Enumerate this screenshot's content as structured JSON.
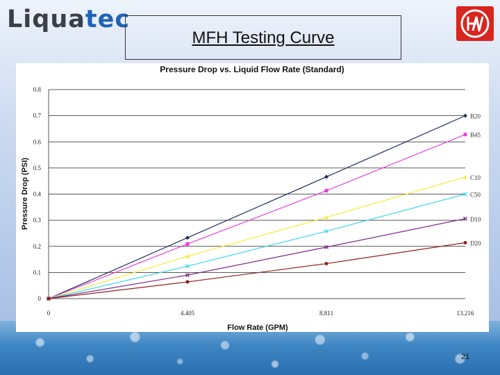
{
  "header": {
    "logo_part1": "Liqua",
    "logo_part2": "tec",
    "slide_title": "MFH Testing Curve",
    "page_number": "21"
  },
  "brand_colors": {
    "logo_dark": "#3b3f47",
    "logo_blue": "#1e63b8",
    "corner_logo_red": "#d8261f"
  },
  "icons": {
    "corner_logo": "hw-logo-icon"
  },
  "chart_data": {
    "type": "line",
    "title": "Pressure Drop vs. Liquid Flow Rate (Standard)",
    "xlabel": "Flow Rate (GPM)",
    "ylabel": "Pressure Drop (PSI)",
    "x": [
      0,
      4.405,
      8.811,
      13.216
    ],
    "x_tick_labels": [
      "0",
      "4.405",
      "8.811",
      "13.216"
    ],
    "y_ticks": [
      0,
      0.1,
      0.2,
      0.3,
      0.4,
      0.5,
      0.6,
      0.7,
      0.8
    ],
    "y_tick_labels": [
      "0",
      "0.1",
      "0.2",
      "0.3",
      "0.4",
      "0.5",
      "0.6",
      "0.7",
      "0.8"
    ],
    "ylim": [
      0,
      0.8
    ],
    "grid": "horizontal",
    "legend": "line-end labels, right",
    "series": [
      {
        "name": "B20",
        "values": [
          0,
          0.233,
          0.466,
          0.7
        ],
        "color": "#1f2a5c",
        "marker": "diamond"
      },
      {
        "name": "B45",
        "values": [
          0,
          0.209,
          0.413,
          0.628
        ],
        "color": "#e83ed8",
        "marker": "square"
      },
      {
        "name": "C10",
        "values": [
          0,
          0.162,
          0.311,
          0.465
        ],
        "color": "#f2ee3a",
        "marker": "triangle"
      },
      {
        "name": "C50",
        "values": [
          0,
          0.124,
          0.258,
          0.4
        ],
        "color": "#3cd8e8",
        "marker": "x"
      },
      {
        "name": "D10",
        "values": [
          0,
          0.09,
          0.197,
          0.306
        ],
        "color": "#7a2a86",
        "marker": "x"
      },
      {
        "name": "D20",
        "values": [
          0,
          0.064,
          0.134,
          0.214
        ],
        "color": "#8e1f1f",
        "marker": "circle"
      }
    ]
  }
}
